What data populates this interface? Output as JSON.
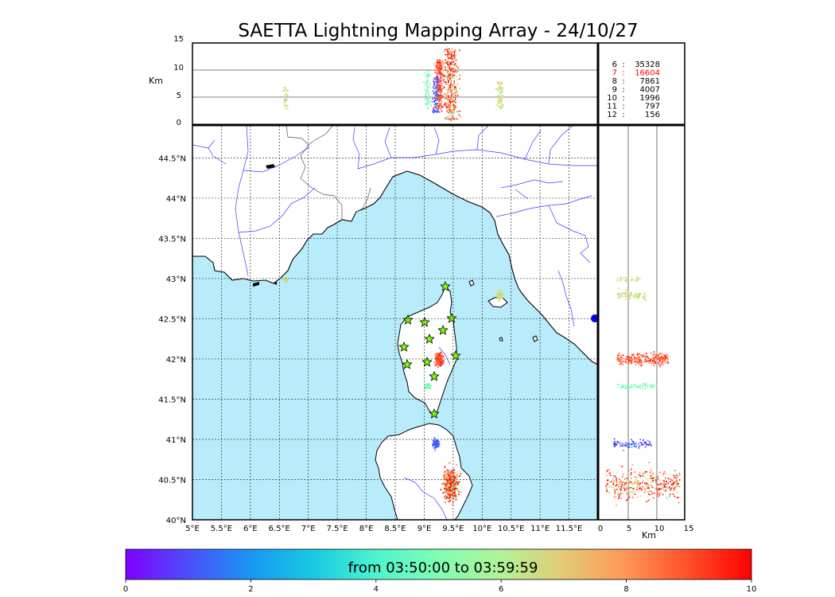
{
  "title": "SAETTA Lightning Mapping Array - 24/10/27",
  "altitude_axis": {
    "unit_label": "Km",
    "ticks": [
      "0",
      "5",
      "10",
      "15"
    ]
  },
  "side_axis": {
    "unit_label": "Km",
    "ticks": [
      "0",
      "5",
      "10",
      "15"
    ]
  },
  "map": {
    "lon_ticks": [
      "5°E",
      "5.5°E",
      "6°E",
      "6.5°E",
      "7°E",
      "7.5°E",
      "8°E",
      "8.5°E",
      "9°E",
      "9.5°E",
      "10°E",
      "10.5°E",
      "11°E",
      "11.5°E"
    ],
    "lat_ticks": [
      "40°N",
      "40.5°N",
      "41°N",
      "41.5°N",
      "42°N",
      "42.5°N",
      "43°N",
      "43.5°N",
      "44°N",
      "44.5°N"
    ],
    "sea_color": "#b8ecfb",
    "land_color": "#ffffff",
    "coast_color": "#000000",
    "river_color": "#3a3aff",
    "station_color": "#7cfc00"
  },
  "station_counts": [
    {
      "stations": "6",
      "sep": ":",
      "count": "35328",
      "color": "#000000"
    },
    {
      "stations": "7",
      "sep": ":",
      "count": "16604",
      "color": "#ff0000"
    },
    {
      "stations": "8",
      "sep": ":",
      "count": "7861",
      "color": "#000000"
    },
    {
      "stations": "9",
      "sep": ":",
      "count": "4007",
      "color": "#000000"
    },
    {
      "stations": "10",
      "sep": ":",
      "count": "1996",
      "color": "#000000"
    },
    {
      "stations": "11",
      "sep": ":",
      "count": "797",
      "color": "#000000"
    },
    {
      "stations": "12",
      "sep": ":",
      "count": "156",
      "color": "#000000"
    }
  ],
  "colorbar": {
    "label": "from 03:50:00 to 03:59:59",
    "ticks": [
      "0",
      "2",
      "4",
      "6",
      "8",
      "10"
    ],
    "colors": [
      "#7f00ff",
      "#4b4ffc",
      "#1996f3",
      "#17c9e2",
      "#4ff3cf",
      "#80feb3",
      "#b2f396",
      "#e5ca76",
      "#ff9557",
      "#ff4f28",
      "#ff0000"
    ]
  },
  "lightning_clusters": [
    {
      "name": "corsica-east",
      "lon": 9.25,
      "lat": 42.0,
      "alt_km": [
        3,
        12
      ],
      "time_min": 9
    },
    {
      "name": "corsica-south",
      "lon": 9.05,
      "lat": 41.67,
      "alt_km": [
        3,
        10
      ],
      "time_min": 5
    },
    {
      "name": "sardinia-east",
      "lon": 9.45,
      "lat": 40.45,
      "alt_km": [
        1,
        14
      ],
      "time_min": 8.5
    },
    {
      "name": "sardinia-north",
      "lon": 9.2,
      "lat": 40.95,
      "alt_km": [
        2,
        9
      ],
      "time_min": 1
    },
    {
      "name": "elba",
      "lon": 10.3,
      "lat": 42.8,
      "alt_km": [
        3,
        8
      ],
      "time_min": 6.5
    },
    {
      "name": "ligurian-coast",
      "lon": 6.6,
      "lat": 43.0,
      "alt_km": [
        3,
        7
      ],
      "time_min": 6.5
    }
  ]
}
